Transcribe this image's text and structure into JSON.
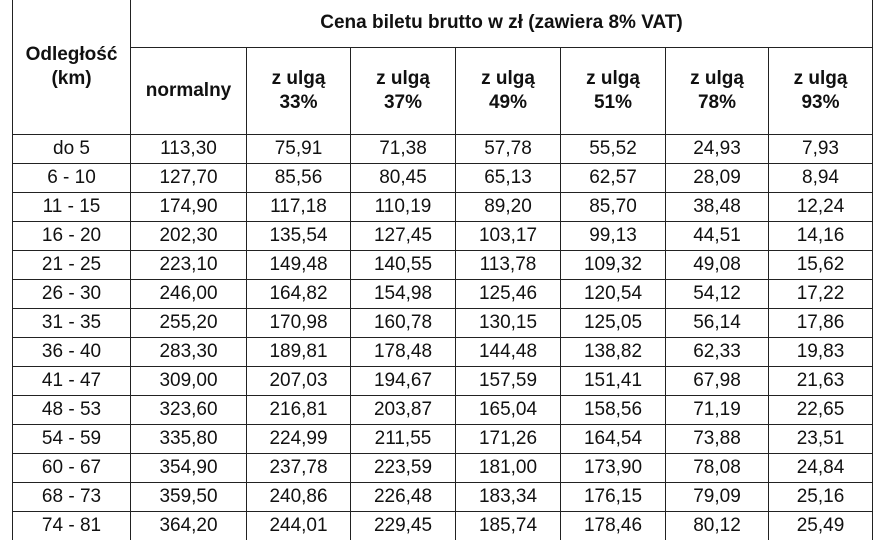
{
  "table": {
    "row_header": "Odległość\n(km)",
    "group_header": "Cena biletu brutto w zł (zawiera 8% VAT)",
    "columns": [
      "normalny",
      "z ulgą\n33%",
      "z ulgą\n37%",
      "z ulgą\n49%",
      "z ulgą\n51%",
      "z ulgą\n78%",
      "z ulgą\n93%"
    ],
    "rows": [
      [
        "do 5",
        "113,30",
        "75,91",
        "71,38",
        "57,78",
        "55,52",
        "24,93",
        "7,93"
      ],
      [
        "6 - 10",
        "127,70",
        "85,56",
        "80,45",
        "65,13",
        "62,57",
        "28,09",
        "8,94"
      ],
      [
        "11 - 15",
        "174,90",
        "117,18",
        "110,19",
        "89,20",
        "85,70",
        "38,48",
        "12,24"
      ],
      [
        "16 - 20",
        "202,30",
        "135,54",
        "127,45",
        "103,17",
        "99,13",
        "44,51",
        "14,16"
      ],
      [
        "21 - 25",
        "223,10",
        "149,48",
        "140,55",
        "113,78",
        "109,32",
        "49,08",
        "15,62"
      ],
      [
        "26 - 30",
        "246,00",
        "164,82",
        "154,98",
        "125,46",
        "120,54",
        "54,12",
        "17,22"
      ],
      [
        "31 - 35",
        "255,20",
        "170,98",
        "160,78",
        "130,15",
        "125,05",
        "56,14",
        "17,86"
      ],
      [
        "36 - 40",
        "283,30",
        "189,81",
        "178,48",
        "144,48",
        "138,82",
        "62,33",
        "19,83"
      ],
      [
        "41 - 47",
        "309,00",
        "207,03",
        "194,67",
        "157,59",
        "151,41",
        "67,98",
        "21,63"
      ],
      [
        "48 - 53",
        "323,60",
        "216,81",
        "203,87",
        "165,04",
        "158,56",
        "71,19",
        "22,65"
      ],
      [
        "54 - 59",
        "335,80",
        "224,99",
        "211,55",
        "171,26",
        "164,54",
        "73,88",
        "23,51"
      ],
      [
        "60 - 67",
        "354,90",
        "237,78",
        "223,59",
        "181,00",
        "173,90",
        "78,08",
        "24,84"
      ],
      [
        "68 - 73",
        "359,50",
        "240,86",
        "226,48",
        "183,34",
        "176,15",
        "79,09",
        "25,16"
      ],
      [
        "74 - 81",
        "364,20",
        "244,01",
        "229,45",
        "185,74",
        "178,46",
        "80,12",
        "25,49"
      ]
    ]
  }
}
